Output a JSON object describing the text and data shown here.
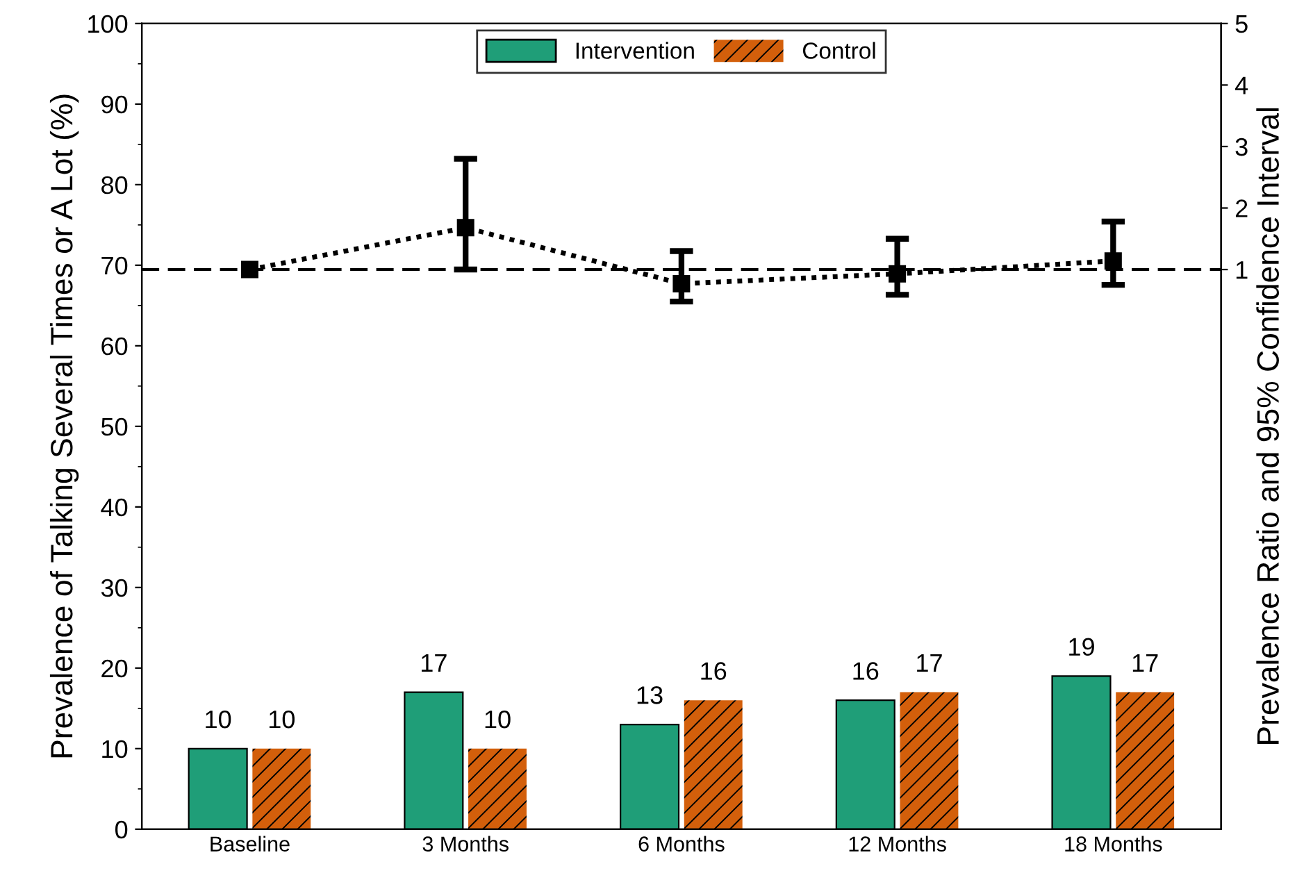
{
  "chart_data": {
    "type": "bar",
    "categories": [
      "Baseline",
      "3 Months",
      "6 Months",
      "12 Months",
      "18 Months"
    ],
    "series": [
      {
        "name": "Intervention",
        "color": "#1f9e78",
        "values": [
          10,
          17,
          13,
          16,
          19
        ],
        "value_labels": [
          "10",
          "17",
          "13",
          "16",
          "19"
        ]
      },
      {
        "name": "Control",
        "color": "#d35f0b",
        "values": [
          10,
          10,
          16,
          17,
          17
        ],
        "value_labels": [
          "10",
          "10",
          "16",
          "17",
          "17"
        ]
      },
      {
        "type": "line",
        "axis": "y2",
        "color": "#000000",
        "marker": "square",
        "line_style": "dotted",
        "values": [
          1.0,
          1.68,
          0.77,
          0.93,
          1.14
        ],
        "errors": [
          null,
          [
            1.0,
            2.8
          ],
          [
            0.48,
            1.3
          ],
          [
            0.59,
            1.5
          ],
          [
            0.75,
            1.78
          ]
        ]
      }
    ],
    "ylabel": "Prevalence of Talking Several Times or A Lot (%)",
    "y2label": "Prevalence Ratio and 95% Confidence Interval",
    "ylim": [
      0,
      100
    ],
    "yticks": [
      0,
      10,
      20,
      30,
      40,
      50,
      60,
      70,
      80,
      90,
      100
    ],
    "y2lim": [
      -8.1,
      5
    ],
    "y2ticks": [
      1,
      2,
      3,
      4,
      5
    ],
    "ref_lines": [
      {
        "axis": "y2",
        "value": 1,
        "color": "#000000",
        "line_style": "dashed"
      }
    ],
    "legend": "top",
    "grid": false
  }
}
